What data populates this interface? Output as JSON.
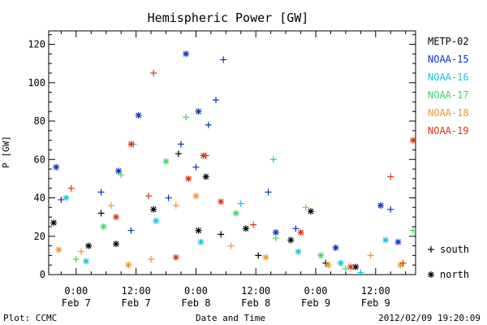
{
  "chart_data": {
    "type": "scatter",
    "title": "Hemispheric Power [GW]",
    "xlabel": "Date and Time",
    "ylabel": "P [GW]",
    "ylim": [
      0,
      127
    ],
    "xlim": [
      "2012-02-06 18:30",
      "2012-02-09 20:00"
    ],
    "x_ticks": [
      {
        "time": "2012-02-07 00:00",
        "label": "0:00",
        "day": "Feb 7"
      },
      {
        "time": "2012-02-07 12:00",
        "label": "12:00",
        "day": "Feb 7"
      },
      {
        "time": "2012-02-08 00:00",
        "label": "0:00",
        "day": "Feb 8"
      },
      {
        "time": "2012-02-08 12:00",
        "label": "12:00",
        "day": "Feb 8"
      },
      {
        "time": "2012-02-09 00:00",
        "label": "0:00",
        "day": "Feb 9"
      },
      {
        "time": "2012-02-09 12:00",
        "label": "12:00",
        "day": "Feb 9"
      }
    ],
    "y_ticks": [
      0,
      20,
      40,
      60,
      80,
      100,
      120
    ],
    "grid": false,
    "legend_position": "right",
    "markers": {
      "south": "+",
      "north": "*"
    },
    "marker_legend": [
      {
        "symbol": "+",
        "label": "south"
      },
      {
        "symbol": "*",
        "label": "north"
      }
    ],
    "series": [
      {
        "name": "METP-02",
        "color": "#000000",
        "points": [
          {
            "t": "2012-02-06 19:30",
            "y": 27,
            "m": "*"
          },
          {
            "t": "2012-02-07 02:30",
            "y": 15,
            "m": "*"
          },
          {
            "t": "2012-02-07 05:00",
            "y": 32,
            "m": "+"
          },
          {
            "t": "2012-02-07 08:00",
            "y": 16,
            "m": "*"
          },
          {
            "t": "2012-02-07 15:30",
            "y": 34,
            "m": "*"
          },
          {
            "t": "2012-02-07 20:30",
            "y": 63,
            "m": "+"
          },
          {
            "t": "2012-02-08 00:30",
            "y": 23,
            "m": "*"
          },
          {
            "t": "2012-02-08 02:00",
            "y": 51,
            "m": "*"
          },
          {
            "t": "2012-02-08 05:00",
            "y": 21,
            "m": "+"
          },
          {
            "t": "2012-02-08 10:00",
            "y": 24,
            "m": "*"
          },
          {
            "t": "2012-02-08 12:30",
            "y": 10,
            "m": "+"
          },
          {
            "t": "2012-02-08 19:00",
            "y": 18,
            "m": "*"
          },
          {
            "t": "2012-02-08 23:00",
            "y": 33,
            "m": "*"
          },
          {
            "t": "2012-02-09 02:00",
            "y": 6,
            "m": "+"
          },
          {
            "t": "2012-02-09 08:00",
            "y": 4,
            "m": "*"
          }
        ]
      },
      {
        "name": "NOAA-15",
        "color": "#0a32c8",
        "points": [
          {
            "t": "2012-02-06 20:00",
            "y": 56,
            "m": "*"
          },
          {
            "t": "2012-02-06 21:00",
            "y": 39,
            "m": "+"
          },
          {
            "t": "2012-02-07 05:00",
            "y": 43,
            "m": "+"
          },
          {
            "t": "2012-02-07 08:30",
            "y": 54,
            "m": "*"
          },
          {
            "t": "2012-02-07 11:00",
            "y": 23,
            "m": "+"
          },
          {
            "t": "2012-02-07 12:30",
            "y": 83,
            "m": "*"
          },
          {
            "t": "2012-02-07 18:30",
            "y": 40,
            "m": "+"
          },
          {
            "t": "2012-02-07 21:00",
            "y": 68,
            "m": "+"
          },
          {
            "t": "2012-02-07 22:00",
            "y": 115,
            "m": "*"
          },
          {
            "t": "2012-02-08 00:00",
            "y": 56,
            "m": "+"
          },
          {
            "t": "2012-02-08 00:30",
            "y": 85,
            "m": "*"
          },
          {
            "t": "2012-02-08 02:30",
            "y": 78,
            "m": "+"
          },
          {
            "t": "2012-02-08 04:00",
            "y": 91,
            "m": "+"
          },
          {
            "t": "2012-02-08 05:30",
            "y": 112,
            "m": "+"
          },
          {
            "t": "2012-02-08 14:30",
            "y": 43,
            "m": "+"
          },
          {
            "t": "2012-02-08 16:00",
            "y": 22,
            "m": "*"
          },
          {
            "t": "2012-02-08 20:00",
            "y": 24,
            "m": "+"
          },
          {
            "t": "2012-02-09 04:00",
            "y": 14,
            "m": "*"
          },
          {
            "t": "2012-02-09 13:00",
            "y": 36,
            "m": "*"
          },
          {
            "t": "2012-02-09 15:00",
            "y": 34,
            "m": "+"
          },
          {
            "t": "2012-02-09 16:30",
            "y": 17,
            "m": "*"
          }
        ]
      },
      {
        "name": "NOAA-16",
        "color": "#14c8dc",
        "points": [
          {
            "t": "2012-02-06 22:00",
            "y": 40,
            "m": "*"
          },
          {
            "t": "2012-02-07 02:00",
            "y": 7,
            "m": "*"
          },
          {
            "t": "2012-02-07 11:30",
            "y": 68,
            "m": "+"
          },
          {
            "t": "2012-02-07 16:00",
            "y": 28,
            "m": "*"
          },
          {
            "t": "2012-02-08 01:00",
            "y": 17,
            "m": "*"
          },
          {
            "t": "2012-02-08 09:00",
            "y": 37,
            "m": "+"
          },
          {
            "t": "2012-02-08 15:30",
            "y": 60,
            "m": "+"
          },
          {
            "t": "2012-02-08 20:30",
            "y": 12,
            "m": "*"
          },
          {
            "t": "2012-02-09 05:00",
            "y": 6,
            "m": "*"
          },
          {
            "t": "2012-02-09 09:00",
            "y": 1,
            "m": "+"
          },
          {
            "t": "2012-02-09 14:00",
            "y": 18,
            "m": "*"
          }
        ]
      },
      {
        "name": "NOAA-17",
        "color": "#32dc64",
        "points": [
          {
            "t": "2012-02-07 00:00",
            "y": 8,
            "m": "+"
          },
          {
            "t": "2012-02-07 05:30",
            "y": 25,
            "m": "*"
          },
          {
            "t": "2012-02-07 09:00",
            "y": 52,
            "m": "+"
          },
          {
            "t": "2012-02-07 18:00",
            "y": 59,
            "m": "*"
          },
          {
            "t": "2012-02-07 22:00",
            "y": 82,
            "m": "+"
          },
          {
            "t": "2012-02-08 08:00",
            "y": 32,
            "m": "*"
          },
          {
            "t": "2012-02-08 16:00",
            "y": 19,
            "m": "+"
          },
          {
            "t": "2012-02-09 01:00",
            "y": 10,
            "m": "*"
          },
          {
            "t": "2012-02-09 06:00",
            "y": 3,
            "m": "+"
          },
          {
            "t": "2012-02-09 19:30",
            "y": 23,
            "m": "+"
          }
        ]
      },
      {
        "name": "NOAA-18",
        "color": "#f09628",
        "points": [
          {
            "t": "2012-02-06 20:30",
            "y": 13,
            "m": "*"
          },
          {
            "t": "2012-02-07 01:00",
            "y": 12,
            "m": "+"
          },
          {
            "t": "2012-02-07 07:00",
            "y": 36,
            "m": "+"
          },
          {
            "t": "2012-02-07 10:30",
            "y": 5,
            "m": "*"
          },
          {
            "t": "2012-02-07 15:00",
            "y": 8,
            "m": "+"
          },
          {
            "t": "2012-02-07 20:00",
            "y": 36,
            "m": "+"
          },
          {
            "t": "2012-02-08 00:00",
            "y": 41,
            "m": "*"
          },
          {
            "t": "2012-02-08 07:00",
            "y": 15,
            "m": "+"
          },
          {
            "t": "2012-02-08 14:00",
            "y": 9,
            "m": "*"
          },
          {
            "t": "2012-02-08 22:00",
            "y": 35,
            "m": "+"
          },
          {
            "t": "2012-02-09 02:30",
            "y": 5,
            "m": "*"
          },
          {
            "t": "2012-02-09 11:00",
            "y": 10,
            "m": "+"
          },
          {
            "t": "2012-02-09 17:00",
            "y": 5,
            "m": "*"
          }
        ]
      },
      {
        "name": "NOAA-19",
        "color": "#dc3214",
        "points": [
          {
            "t": "2012-02-06 23:00",
            "y": 45,
            "m": "+"
          },
          {
            "t": "2012-02-07 08:00",
            "y": 30,
            "m": "*"
          },
          {
            "t": "2012-02-07 11:00",
            "y": 68,
            "m": "*"
          },
          {
            "t": "2012-02-07 14:30",
            "y": 41,
            "m": "+"
          },
          {
            "t": "2012-02-07 15:30",
            "y": 105,
            "m": "+"
          },
          {
            "t": "2012-02-07 20:00",
            "y": 9,
            "m": "*"
          },
          {
            "t": "2012-02-07 22:30",
            "y": 50,
            "m": "*"
          },
          {
            "t": "2012-02-08 01:30",
            "y": 62,
            "m": "*"
          },
          {
            "t": "2012-02-08 02:00",
            "y": 62,
            "m": "+"
          },
          {
            "t": "2012-02-08 05:00",
            "y": 38,
            "m": "*"
          },
          {
            "t": "2012-02-08 11:30",
            "y": 26,
            "m": "+"
          },
          {
            "t": "2012-02-08 21:00",
            "y": 22,
            "m": "*"
          },
          {
            "t": "2012-02-09 07:00",
            "y": 4,
            "m": "*"
          },
          {
            "t": "2012-02-09 15:00",
            "y": 51,
            "m": "+"
          },
          {
            "t": "2012-02-09 17:30",
            "y": 6,
            "m": "+"
          },
          {
            "t": "2012-02-09 19:30",
            "y": 70,
            "m": "*"
          }
        ]
      }
    ]
  },
  "footer": {
    "plot_label": "Plot: CCMC",
    "timestamp": "2012/02/09 19:20:09"
  }
}
